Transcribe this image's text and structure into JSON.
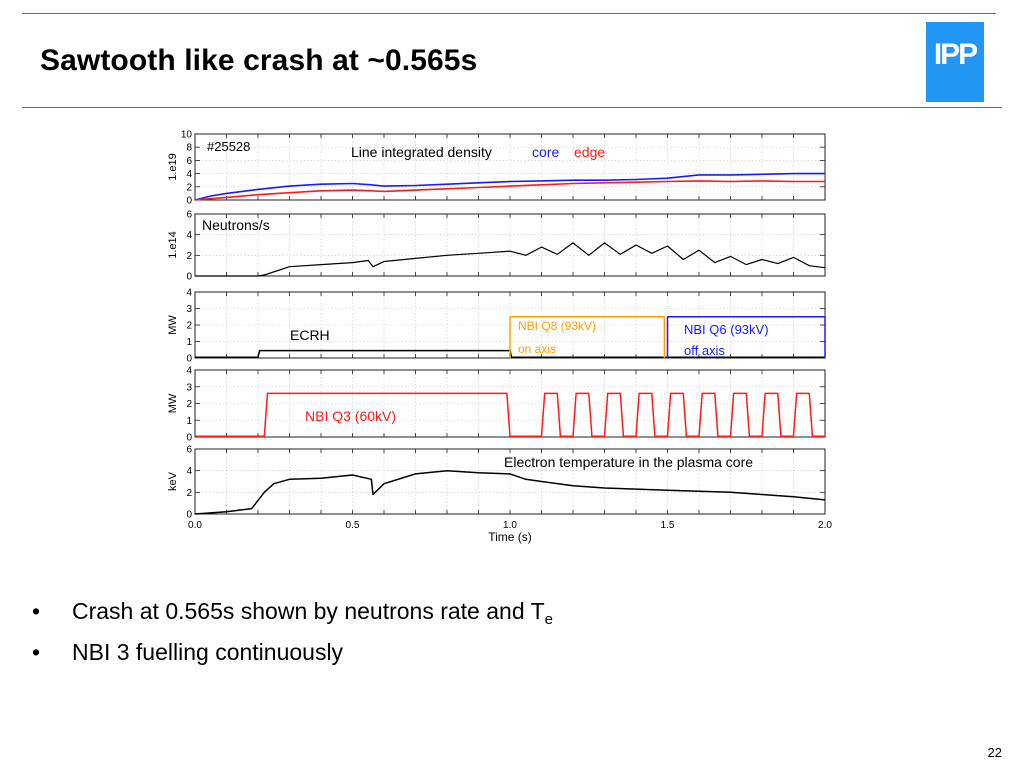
{
  "slide": {
    "title": "Sawtooth like crash at ~0.565s",
    "logo_text": "IPP",
    "page_number": "22",
    "bullets": [
      {
        "text": "Crash at 0.565s shown by neutrons rate and T",
        "subscript": "e"
      },
      {
        "text": "NBI 3 fuelling continuously",
        "subscript": ""
      }
    ],
    "bullet_glyph": "•"
  },
  "colors": {
    "logo": "#2196f3",
    "black": "#000000",
    "blue": "#1a1aff",
    "red": "#ff1a1a",
    "orange": "#ffa000",
    "grid": "#c8c8c8"
  },
  "chart_data": {
    "type": "line",
    "shot_label": "#25528",
    "xlabel": "Time (s)",
    "x_ticks": [
      "0.0",
      "0.5",
      "1.0",
      "1.5",
      "2.0"
    ],
    "xlim": [
      0,
      2.0
    ],
    "grid": true,
    "panels": [
      {
        "ylabel": "1.e19",
        "ylim": [
          0,
          10
        ],
        "yticks": [
          "0",
          "2",
          "4",
          "6",
          "8",
          "10"
        ],
        "labels": [
          {
            "text": "#25528",
            "color": "black"
          },
          {
            "text": "Line integrated density",
            "color": "black"
          },
          {
            "text": "core",
            "color": "blue"
          },
          {
            "text": "edge",
            "color": "red"
          }
        ],
        "series": [
          {
            "name": "core",
            "color": "blue",
            "x": [
              0.0,
              0.05,
              0.1,
              0.2,
              0.3,
              0.4,
              0.5,
              0.56,
              0.6,
              0.7,
              0.8,
              0.9,
              1.0,
              1.1,
              1.2,
              1.3,
              1.4,
              1.5,
              1.6,
              1.7,
              1.8,
              1.9,
              2.0
            ],
            "y": [
              0.0,
              0.6,
              1.0,
              1.6,
              2.1,
              2.4,
              2.5,
              2.3,
              2.1,
              2.2,
              2.4,
              2.6,
              2.8,
              2.9,
              3.0,
              3.0,
              3.1,
              3.3,
              3.8,
              3.8,
              3.9,
              4.0,
              4.0
            ]
          },
          {
            "name": "edge",
            "color": "red",
            "x": [
              0.0,
              0.05,
              0.1,
              0.2,
              0.3,
              0.4,
              0.5,
              0.56,
              0.6,
              0.7,
              0.8,
              0.9,
              1.0,
              1.1,
              1.2,
              1.3,
              1.4,
              1.5,
              1.6,
              1.7,
              1.8,
              1.9,
              2.0
            ],
            "y": [
              0.0,
              0.2,
              0.4,
              0.8,
              1.1,
              1.4,
              1.5,
              1.4,
              1.3,
              1.5,
              1.7,
              1.9,
              2.1,
              2.3,
              2.5,
              2.6,
              2.7,
              2.8,
              2.9,
              2.8,
              2.9,
              2.8,
              2.8
            ]
          }
        ]
      },
      {
        "ylabel": "1.e14",
        "ylim": [
          0,
          6
        ],
        "yticks": [
          "0",
          "2",
          "4",
          "6"
        ],
        "labels": [
          {
            "text": "Neutrons/s",
            "color": "black"
          }
        ],
        "series": [
          {
            "name": "neutrons",
            "color": "black",
            "x": [
              0.0,
              0.2,
              0.22,
              0.3,
              0.4,
              0.5,
              0.55,
              0.565,
              0.6,
              0.7,
              0.8,
              0.9,
              1.0,
              1.05,
              1.1,
              1.15,
              1.2,
              1.25,
              1.3,
              1.35,
              1.4,
              1.45,
              1.5,
              1.55,
              1.6,
              1.65,
              1.7,
              1.75,
              1.8,
              1.85,
              1.9,
              1.95,
              2.0
            ],
            "y": [
              0.0,
              0.0,
              0.1,
              0.9,
              1.1,
              1.3,
              1.5,
              0.9,
              1.4,
              1.7,
              2.0,
              2.2,
              2.4,
              2.0,
              2.8,
              2.1,
              3.2,
              2.0,
              3.2,
              2.1,
              3.0,
              2.2,
              2.9,
              1.6,
              2.5,
              1.3,
              1.9,
              1.1,
              1.6,
              1.2,
              1.8,
              1.0,
              0.8
            ]
          }
        ]
      },
      {
        "ylabel": "MW",
        "ylim": [
          0,
          4
        ],
        "yticks": [
          "0",
          "1",
          "2",
          "3",
          "4"
        ],
        "labels": [
          {
            "text": "ECRH",
            "color": "black"
          },
          {
            "text": "NBI Q8 (93kV)",
            "color": "orange"
          },
          {
            "text": "on axis",
            "color": "orange"
          },
          {
            "text": "NBI Q6 (93kV)",
            "color": "blue"
          },
          {
            "text": "off axis",
            "color": "blue"
          }
        ],
        "series": [
          {
            "name": "ECRH",
            "color": "black",
            "x": [
              0.0,
              0.2,
              0.205,
              1.0,
              1.005,
              2.0
            ],
            "y": [
              0.05,
              0.05,
              0.45,
              0.45,
              0.05,
              0.05
            ]
          },
          {
            "name": "NBI Q8 (93kV)",
            "color": "orange",
            "x": [
              1.0,
              1.0,
              1.49,
              1.49
            ],
            "y": [
              0.0,
              2.5,
              2.5,
              0.0
            ]
          },
          {
            "name": "NBI Q6 (93kV)",
            "color": "blue",
            "x": [
              1.5,
              1.5,
              2.0,
              2.0
            ],
            "y": [
              0.0,
              2.5,
              2.5,
              0.0
            ]
          }
        ]
      },
      {
        "ylabel": "MW",
        "ylim": [
          0,
          4
        ],
        "yticks": [
          "0",
          "1",
          "2",
          "3",
          "4"
        ],
        "labels": [
          {
            "text": "NBI Q3 (60kV)",
            "color": "red"
          }
        ],
        "series": [
          {
            "name": "NBI Q3 (60kV)",
            "color": "red",
            "x": [
              0.0,
              0.22,
              0.23,
              0.99,
              1.0,
              1.1,
              1.11,
              1.15,
              1.16,
              1.2,
              1.21,
              1.25,
              1.26,
              1.3,
              1.31,
              1.35,
              1.36,
              1.4,
              1.41,
              1.45,
              1.46,
              1.5,
              1.51,
              1.55,
              1.56,
              1.6,
              1.61,
              1.65,
              1.66,
              1.7,
              1.71,
              1.75,
              1.76,
              1.8,
              1.81,
              1.85,
              1.86,
              1.9,
              1.91,
              1.95,
              1.96,
              2.0
            ],
            "y": [
              0.05,
              0.05,
              2.6,
              2.6,
              0.05,
              0.05,
              2.6,
              2.6,
              0.05,
              0.05,
              2.6,
              2.6,
              0.05,
              0.05,
              2.6,
              2.6,
              0.05,
              0.05,
              2.6,
              2.6,
              0.05,
              0.05,
              2.6,
              2.6,
              0.05,
              0.05,
              2.6,
              2.6,
              0.05,
              0.05,
              2.6,
              2.6,
              0.05,
              0.05,
              2.6,
              2.6,
              0.05,
              0.05,
              2.6,
              2.6,
              0.05,
              0.05
            ]
          }
        ]
      },
      {
        "ylabel": "keV",
        "ylim": [
          0,
          6
        ],
        "yticks": [
          "0",
          "2",
          "4",
          "6"
        ],
        "labels": [
          {
            "text": "Electron temperature in the plasma core",
            "color": "black"
          }
        ],
        "series": [
          {
            "name": "Te core",
            "color": "black",
            "x": [
              0.0,
              0.1,
              0.18,
              0.22,
              0.25,
              0.3,
              0.4,
              0.5,
              0.56,
              0.565,
              0.6,
              0.7,
              0.8,
              0.9,
              1.0,
              1.05,
              1.1,
              1.2,
              1.3,
              1.4,
              1.5,
              1.6,
              1.7,
              1.8,
              1.9,
              2.0
            ],
            "y": [
              0.0,
              0.2,
              0.5,
              2.0,
              2.8,
              3.2,
              3.3,
              3.6,
              3.2,
              1.8,
              2.8,
              3.7,
              4.0,
              3.8,
              3.7,
              3.2,
              3.0,
              2.6,
              2.4,
              2.3,
              2.2,
              2.1,
              2.0,
              1.8,
              1.6,
              1.3
            ]
          }
        ]
      }
    ]
  }
}
